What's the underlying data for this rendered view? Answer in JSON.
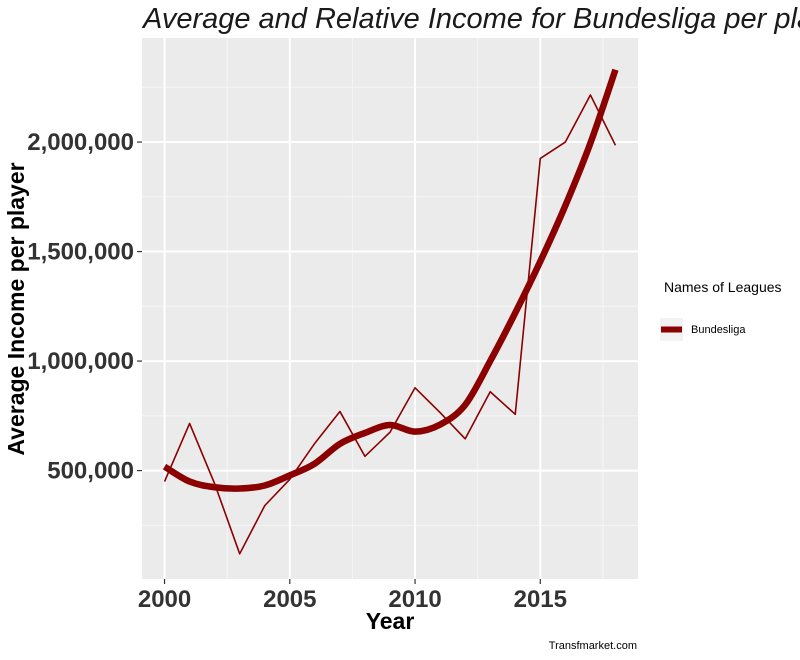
{
  "chart_data": {
    "type": "line",
    "title": "Average and Relative  Income for Bundesliga  per player",
    "xlabel": "Year",
    "ylabel": "Average Income  per player",
    "xlim": [
      1999.1,
      2018.9
    ],
    "ylim": [
      5000,
      2475000
    ],
    "x_ticks": [
      2000,
      2005,
      2010,
      2015
    ],
    "x_tick_labels": [
      "2000",
      "2005",
      "2010",
      "2015"
    ],
    "y_ticks": [
      500000,
      1000000,
      1500000,
      2000000
    ],
    "y_tick_labels": [
      "500,000",
      "1,000,000",
      "1,500,000",
      "2,000,000"
    ],
    "grid": true,
    "legend": {
      "title": "Names of Leagues",
      "position": "right",
      "entries": [
        "Bundesliga"
      ]
    },
    "series": [
      {
        "name": "Bundesliga",
        "kind": "raw",
        "color": "#8b0000",
        "x": [
          2000,
          2001,
          2002,
          2003,
          2004,
          2005,
          2006,
          2007,
          2008,
          2009,
          2010,
          2011,
          2012,
          2013,
          2014,
          2015,
          2016,
          2017,
          2018
        ],
        "y": [
          450000,
          715000,
          440000,
          120000,
          340000,
          460000,
          625000,
          770000,
          565000,
          675000,
          878000,
          765000,
          645000,
          860000,
          757000,
          1925000,
          2000000,
          2215000,
          1985000
        ]
      },
      {
        "name": "Bundesliga",
        "kind": "smoothed",
        "color": "#8b0000",
        "x": [
          2000,
          2001,
          2002,
          2003,
          2004,
          2005,
          2006,
          2007,
          2008,
          2009,
          2010,
          2011,
          2012,
          2013,
          2014,
          2015,
          2016,
          2017,
          2018
        ],
        "y": [
          518000,
          450000,
          424000,
          418000,
          432000,
          478000,
          532000,
          622000,
          672000,
          708000,
          678000,
          710000,
          800000,
          1000000,
          1220000,
          1455000,
          1710000,
          1995000,
          2330000
        ]
      }
    ]
  },
  "caption": "Transfmarket.com"
}
